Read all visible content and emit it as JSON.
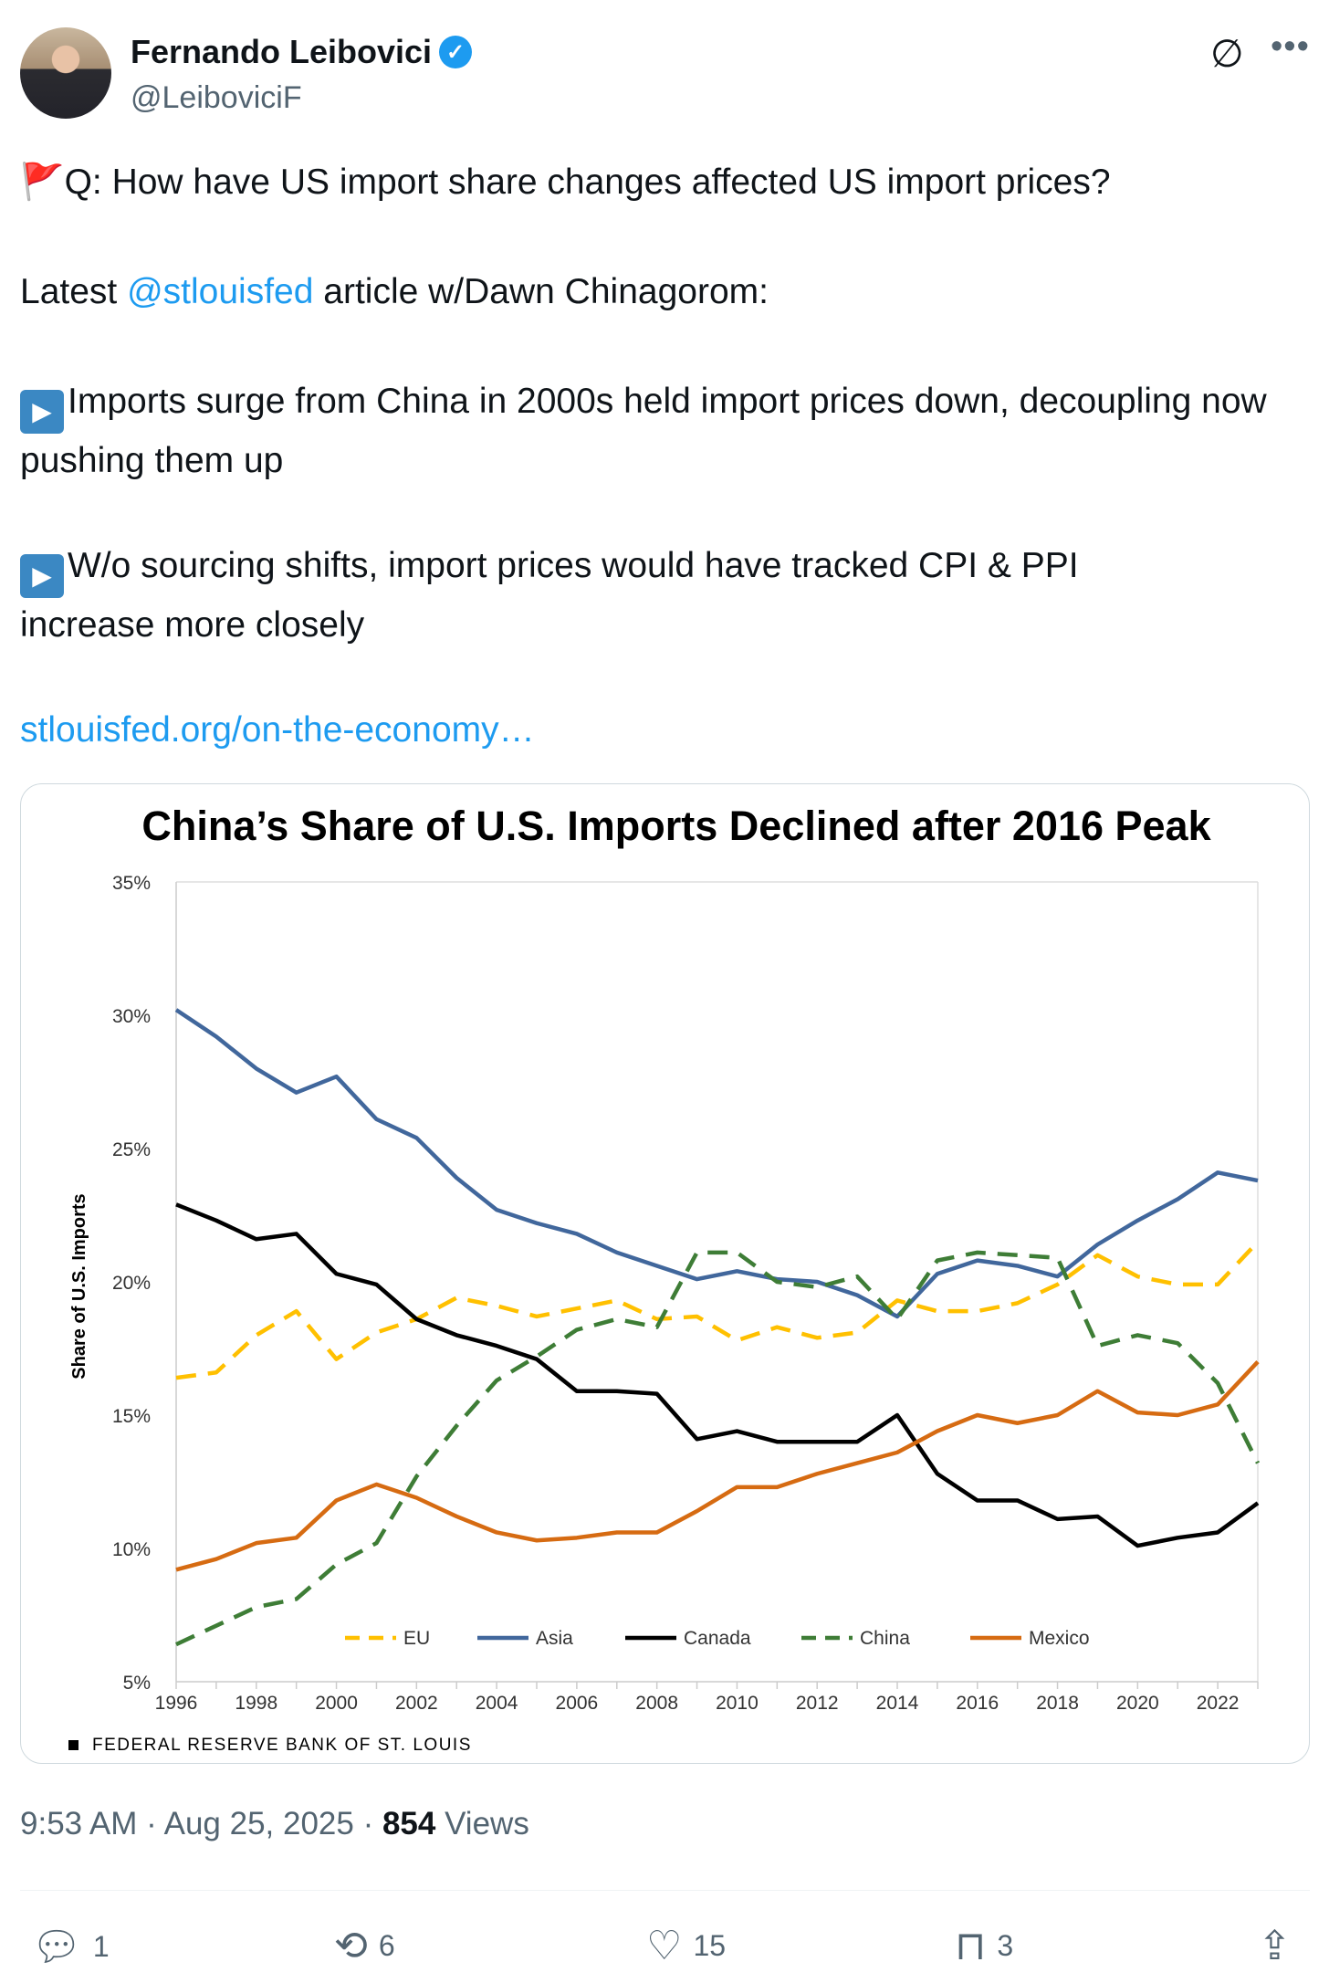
{
  "author": {
    "name": "Fernando Leibovici",
    "handle": "@LeiboviciF",
    "verified_icon": "verified-badge-icon"
  },
  "tweet": {
    "line1": "Q: How have US import share changes affected US import prices?",
    "line2_pre": "Latest ",
    "line2_mention": "@stlouisfed",
    "line2_post": " article w/Dawn Chinagorom:",
    "bullet1": "Imports surge from China in 2000s held import prices down, decoupling now pushing them up",
    "bullet2": "W/o sourcing shifts, import prices would have tracked CPI & PPI increase more closely",
    "link": "stlouisfed.org/on-the-economy…"
  },
  "chart_data": {
    "type": "line",
    "title": "China’s Share of U.S. Imports Declined after 2016 Peak",
    "ylabel": "Share of U.S. Imports",
    "xlabel": "",
    "ylim": [
      5,
      35
    ],
    "yticks": [
      "5%",
      "10%",
      "15%",
      "20%",
      "25%",
      "30%",
      "35%"
    ],
    "xticks": [
      "1996",
      "1998",
      "2000",
      "2002",
      "2004",
      "2006",
      "2008",
      "2010",
      "2012",
      "2014",
      "2016",
      "2018",
      "2020",
      "2022"
    ],
    "x": [
      1996,
      1997,
      1998,
      1999,
      2000,
      2001,
      2002,
      2003,
      2004,
      2005,
      2006,
      2007,
      2008,
      2009,
      2010,
      2011,
      2012,
      2013,
      2014,
      2015,
      2016,
      2017,
      2018,
      2019,
      2020,
      2021,
      2022,
      2023
    ],
    "legend_position": "bottom-inside",
    "series": [
      {
        "name": "EU",
        "color": "#ffc000",
        "dash": true,
        "values": [
          16.4,
          16.6,
          18.0,
          18.9,
          17.1,
          18.1,
          18.6,
          19.4,
          19.1,
          18.7,
          19.0,
          19.3,
          18.6,
          18.7,
          17.8,
          18.3,
          17.9,
          18.1,
          19.3,
          18.9,
          18.9,
          19.2,
          19.9,
          21.0,
          20.2,
          19.9,
          19.9,
          21.5
        ]
      },
      {
        "name": "Asia",
        "color": "#41679c",
        "dash": false,
        "values": [
          30.2,
          29.2,
          28.0,
          27.1,
          27.7,
          26.1,
          25.4,
          23.9,
          22.7,
          22.2,
          21.8,
          21.1,
          20.6,
          20.1,
          20.4,
          20.1,
          20.0,
          19.5,
          18.7,
          20.3,
          20.8,
          20.6,
          20.2,
          21.4,
          22.3,
          23.1,
          24.1,
          23.8
        ]
      },
      {
        "name": "Canada",
        "color": "#000000",
        "dash": false,
        "values": [
          22.9,
          22.3,
          21.6,
          21.8,
          20.3,
          19.9,
          18.6,
          18.0,
          17.6,
          17.1,
          15.9,
          15.9,
          15.8,
          14.1,
          14.4,
          14.0,
          14.0,
          14.0,
          15.0,
          12.8,
          11.8,
          11.8,
          11.1,
          11.2,
          10.1,
          10.4,
          10.6,
          11.7
        ]
      },
      {
        "name": "China",
        "color": "#3e7d36",
        "dash": true,
        "values": [
          6.4,
          7.1,
          7.8,
          8.1,
          9.4,
          10.2,
          12.7,
          14.6,
          16.3,
          17.2,
          18.2,
          18.6,
          18.3,
          21.1,
          21.1,
          20.0,
          19.8,
          20.2,
          18.6,
          20.8,
          21.1,
          21.0,
          20.9,
          17.6,
          18.0,
          17.7,
          16.2,
          13.2
        ]
      },
      {
        "name": "Mexico",
        "color": "#d66b12",
        "dash": false,
        "values": [
          9.2,
          9.6,
          10.2,
          10.4,
          11.8,
          12.4,
          11.9,
          11.2,
          10.6,
          10.3,
          10.4,
          10.6,
          10.6,
          11.4,
          12.3,
          12.3,
          12.8,
          13.2,
          13.6,
          14.4,
          15.0,
          14.7,
          15.0,
          15.9,
          15.1,
          15.0,
          15.4,
          17.0
        ]
      }
    ],
    "source": "FEDERAL RESERVE BANK OF ST. LOUIS"
  },
  "meta": {
    "time": "9:53 AM",
    "date": "Aug 25, 2025",
    "views_count": "854",
    "views_label": " Views"
  },
  "actions": {
    "replies": "1",
    "reposts": "6",
    "likes": "15",
    "bookmarks": "3"
  }
}
